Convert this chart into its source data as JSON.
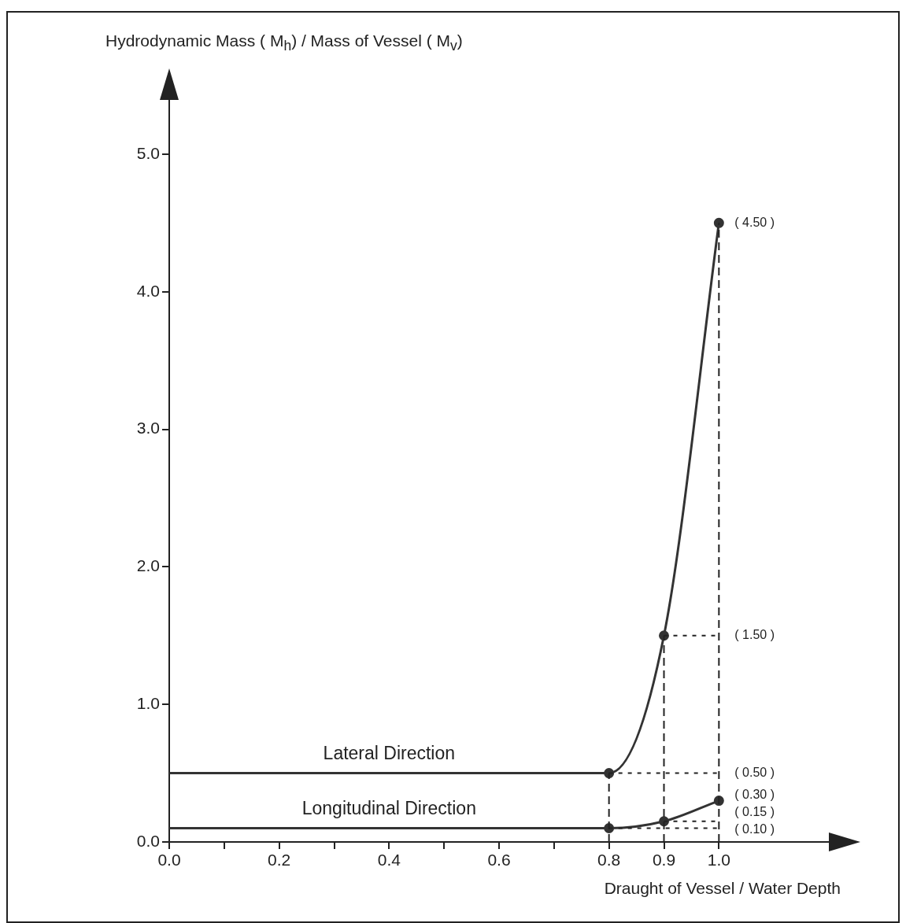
{
  "chart_data": {
    "type": "line",
    "ylabel": "Hydrodynamic Mass ( M$_{h}$) / Mass of Vessel ( M$_{v}$)",
    "xlabel": "Draught of Vessel / Water Depth",
    "xlim": [
      0,
      1.2
    ],
    "xticks": [
      {
        "value": 0,
        "label": "0.0"
      },
      {
        "value": 0.1,
        "label": null
      },
      {
        "value": 0.2,
        "label": "0.2"
      },
      {
        "value": 0.3,
        "label": null
      },
      {
        "value": 0.4,
        "label": "0.4"
      },
      {
        "value": 0.5,
        "label": null
      },
      {
        "value": 0.6,
        "label": "0.6"
      },
      {
        "value": 0.7,
        "label": null
      },
      {
        "value": 0.8,
        "label": "0.8"
      },
      {
        "value": 0.9,
        "label": "0.9"
      },
      {
        "value": 1.0,
        "label": "1.0"
      }
    ],
    "ylim": [
      0,
      5.6
    ],
    "yticks": [
      {
        "value": 0,
        "label": "0.0"
      },
      {
        "value": 1,
        "label": "1.0"
      },
      {
        "value": 2,
        "label": "2.0"
      },
      {
        "value": 3,
        "label": "3.0"
      },
      {
        "value": 4,
        "label": "4.0"
      },
      {
        "value": 5,
        "label": "5.0"
      }
    ],
    "marker": "circle",
    "line_style": "solid",
    "legend": false,
    "ref_lines": [
      {
        "axis": "x",
        "value": 0.8,
        "line_style": "dashed"
      },
      {
        "axis": "x",
        "value": 0.9,
        "line_style": "dashed"
      },
      {
        "axis": "x",
        "value": 1.0,
        "line_style": "dashed"
      }
    ],
    "series": [
      {
        "name": "Lateral Direction",
        "color": "#333333",
        "x": [
          0,
          0.8,
          0.9,
          1.0
        ],
        "values": [
          0.5,
          0.5,
          1.5,
          4.5
        ],
        "value_labels": [
          null,
          "( 0.50 )",
          "( 1.50 )",
          "( 4.50 )"
        ]
      },
      {
        "name": "Longitudinal Direction",
        "color": "#333333",
        "x": [
          0,
          0.8,
          0.9,
          1.0
        ],
        "values": [
          0.1,
          0.1,
          0.15,
          0.3
        ],
        "value_labels": [
          null,
          "( 0.10 )",
          "( 0.15 )",
          "( 0.30 )"
        ]
      }
    ]
  }
}
